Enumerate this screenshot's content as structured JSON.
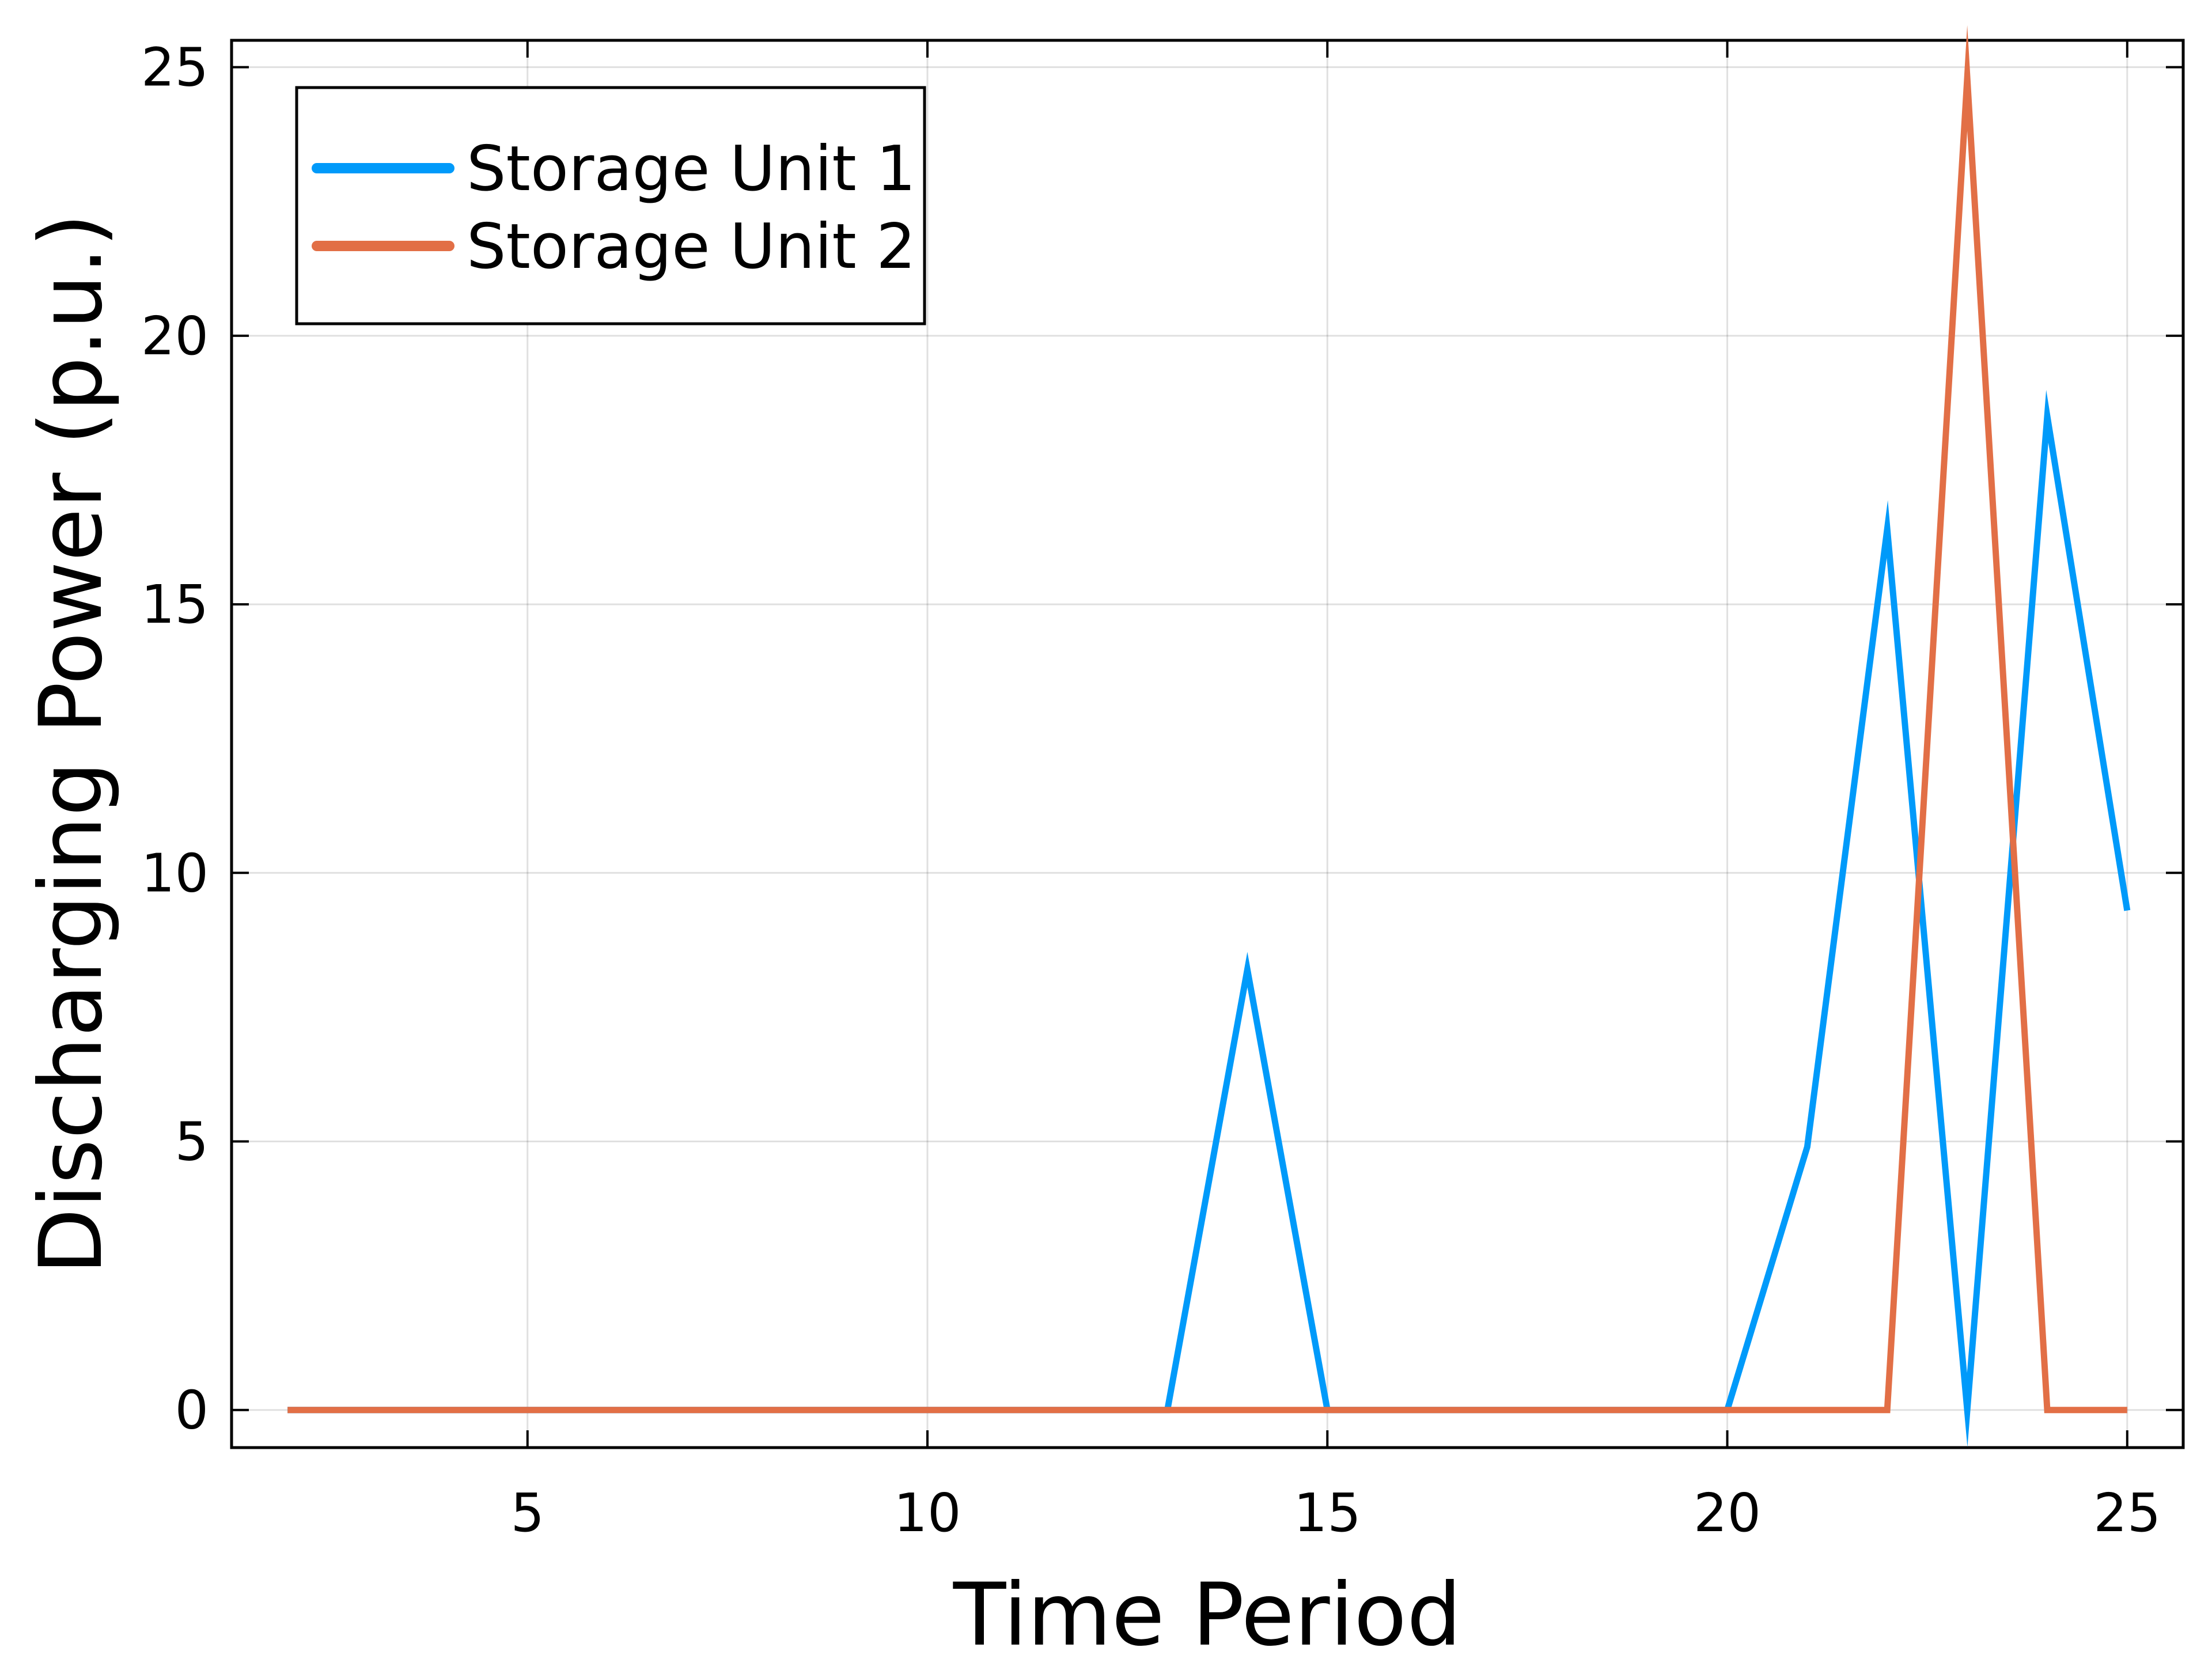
{
  "chart_data": {
    "type": "line",
    "title": "",
    "xlabel": "Time Period",
    "ylabel": "Discharging Power (p.u.)",
    "xlim": [
      1.3,
      25.7
    ],
    "ylim": [
      -0.7,
      25.5
    ],
    "xticks": [
      5,
      10,
      15,
      20,
      25
    ],
    "yticks": [
      0,
      5,
      10,
      15,
      20,
      25
    ],
    "grid": true,
    "legend_position": "top-left",
    "x": [
      2,
      3,
      4,
      5,
      6,
      7,
      8,
      9,
      10,
      11,
      12,
      13,
      14,
      15,
      16,
      17,
      18,
      19,
      20,
      21,
      22,
      23,
      24,
      25
    ],
    "series": [
      {
        "name": "Storage Unit 1",
        "color": "#009AFA",
        "values": [
          0,
          0,
          0,
          0,
          0,
          0,
          0,
          0,
          0,
          0,
          0,
          0,
          8.2,
          0,
          0,
          0,
          0,
          0,
          0,
          4.9,
          16.4,
          0,
          18.5,
          9.3
        ]
      },
      {
        "name": "Storage Unit 2",
        "color": "#E26F46",
        "values": [
          0,
          0,
          0,
          0,
          0,
          0,
          0,
          0,
          0,
          0,
          0,
          0,
          0,
          0,
          0,
          0,
          0,
          0,
          0,
          0,
          0,
          24.8,
          0,
          0
        ]
      }
    ]
  }
}
